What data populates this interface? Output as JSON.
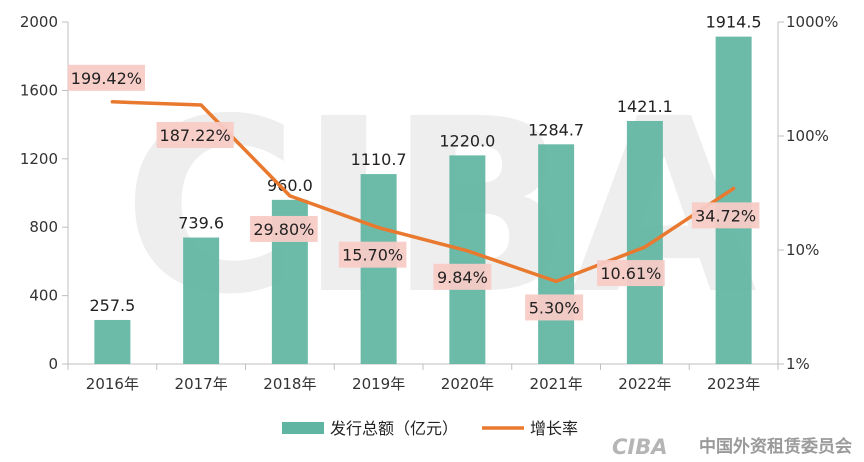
{
  "chart_data": {
    "type": "bar",
    "categories": [
      "2016年",
      "2017年",
      "2018年",
      "2019年",
      "2020年",
      "2021年",
      "2022年",
      "2023年"
    ],
    "series": [
      {
        "name": "发行总额（亿元）",
        "type": "bar",
        "axis": "left",
        "values": [
          257.5,
          739.6,
          960.0,
          1110.7,
          1220.0,
          1284.7,
          1421.1,
          1914.5
        ],
        "labels": [
          "257.5",
          "739.6",
          "960.0",
          "1110.7",
          "1220.0",
          "1284.7",
          "1421.1",
          "1914.5"
        ]
      },
      {
        "name": "增长率",
        "type": "line",
        "axis": "right",
        "values": [
          199.42,
          187.22,
          29.8,
          15.7,
          9.84,
          5.3,
          10.61,
          34.72
        ],
        "labels": [
          "199.42%",
          "187.22%",
          "29.80%",
          "15.70%",
          "9.84%",
          "5.30%",
          "10.61%",
          "34.72%"
        ]
      }
    ],
    "ylim": [
      0,
      2000
    ],
    "yticks": [
      "0",
      "400",
      "800",
      "1200",
      "1600",
      "2000"
    ],
    "y2_scale": "log",
    "y2lim": [
      1,
      1000
    ],
    "y2ticks": [
      "1%",
      "10%",
      "100%",
      "1000%"
    ],
    "legend_position": "bottom",
    "grid": false
  },
  "watermark": "CIBA",
  "logo": {
    "mark": "CIBA",
    "text": "中国外资租赁委员会"
  },
  "colors": {
    "bar": "#5fb5a2",
    "line": "#e8792e",
    "label_bg": "#f8cbc6",
    "axis": "#bfbfbf",
    "watermark": "#ebebeb"
  }
}
